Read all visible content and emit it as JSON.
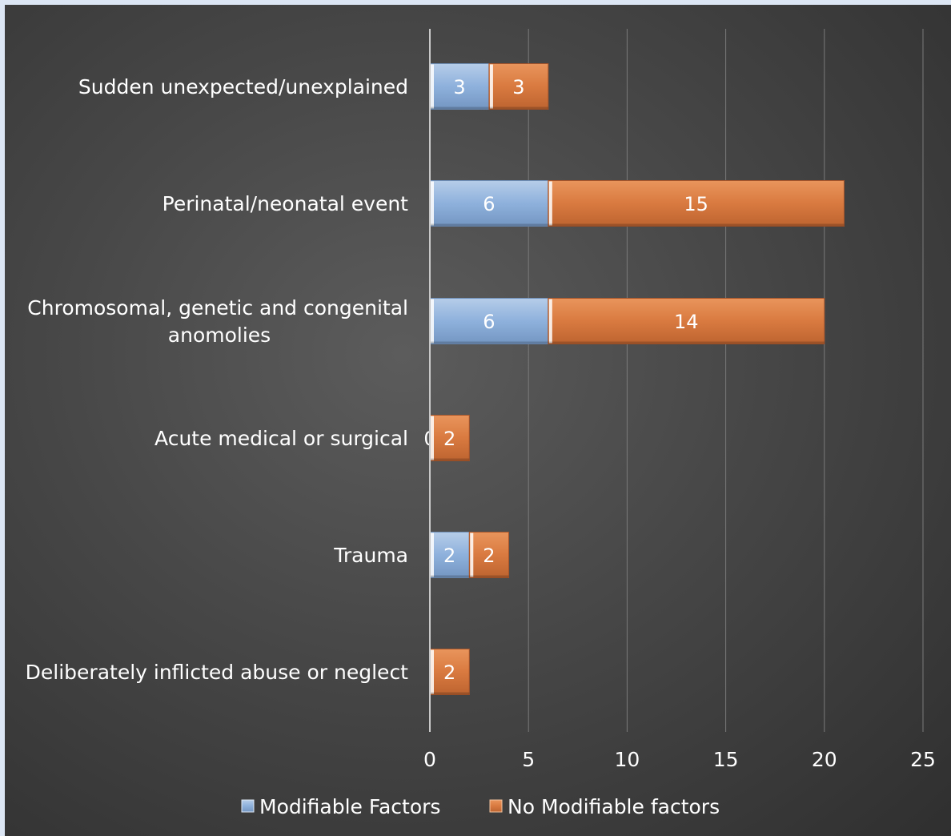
{
  "chart_data": {
    "type": "bar",
    "orientation": "horizontal",
    "stacked": true,
    "categories": [
      "Sudden unexpected/unexplained",
      "Perinatal/neonatal event",
      "Chromosomal, genetic and congenital anomolies",
      "Acute medical or surgical",
      "Trauma",
      "Deliberately inflicted abuse or neglect"
    ],
    "category_lines": [
      [
        "Sudden unexpected/unexplained"
      ],
      [
        "Perinatal/neonatal event"
      ],
      [
        "Chromosomal, genetic and congenital",
        "anomolies"
      ],
      [
        "Acute medical or surgical"
      ],
      [
        "Trauma"
      ],
      [
        "Deliberately inflicted abuse or neglect"
      ]
    ],
    "series": [
      {
        "name": "Modifiable Factors",
        "values": [
          3,
          6,
          6,
          0,
          2,
          null
        ],
        "color": "#8eb4e3"
      },
      {
        "name": "No Modifiable factors",
        "values": [
          3,
          15,
          14,
          2,
          2,
          2
        ],
        "color": "#d97a40"
      }
    ],
    "xlim": [
      0,
      25
    ],
    "xticks": [
      0,
      5,
      10,
      15,
      20,
      25
    ],
    "grid": true,
    "legend_position": "bottom",
    "title": "",
    "xlabel": "",
    "ylabel": ""
  }
}
